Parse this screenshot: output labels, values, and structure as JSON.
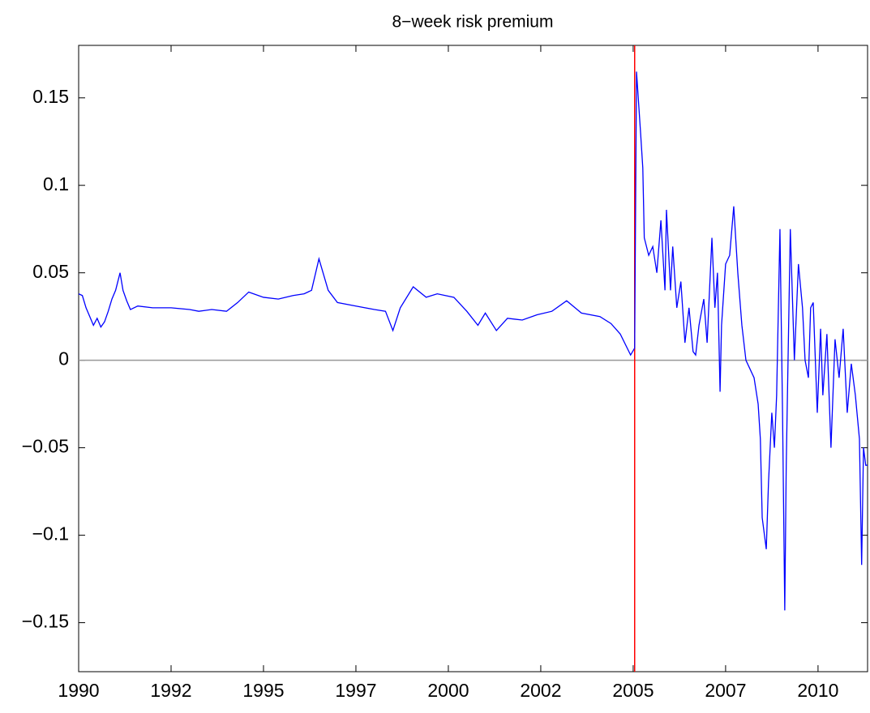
{
  "chart_data": {
    "type": "line",
    "title": "8−week risk premium",
    "x": [
      1990.0,
      1990.1,
      1990.2,
      1990.3,
      1990.4,
      1990.5,
      1990.6,
      1990.7,
      1990.8,
      1990.9,
      1991.0,
      1991.12,
      1991.2,
      1991.3,
      1991.4,
      1991.6,
      1992.0,
      1992.5,
      1993.0,
      1993.25,
      1993.6,
      1994.0,
      1994.3,
      1994.6,
      1995.0,
      1995.4,
      1995.8,
      1996.1,
      1996.3,
      1996.5,
      1996.75,
      1997.0,
      1997.5,
      1998.0,
      1998.3,
      1998.5,
      1998.7,
      1999.05,
      1999.4,
      1999.7,
      2000.15,
      2000.5,
      2000.8,
      2001.0,
      2001.3,
      2001.6,
      2002.0,
      2002.4,
      2002.8,
      2003.2,
      2003.6,
      2004.1,
      2004.4,
      2004.65,
      2004.93,
      2005.04,
      2005.09,
      2005.2,
      2005.26,
      2005.3,
      2005.42,
      2005.53,
      2005.64,
      2005.75,
      2005.86,
      2005.9,
      2006.01,
      2006.07,
      2006.18,
      2006.29,
      2006.4,
      2006.51,
      2006.62,
      2006.69,
      2006.78,
      2006.91,
      2007.0,
      2007.13,
      2007.21,
      2007.28,
      2007.35,
      2007.39,
      2007.5,
      2007.61,
      2007.72,
      2007.83,
      2007.94,
      2008.05,
      2008.16,
      2008.27,
      2008.38,
      2008.44,
      2008.49,
      2008.6,
      2008.66,
      2008.75,
      2008.82,
      2008.88,
      2008.97,
      2009.04,
      2009.1,
      2009.14,
      2009.25,
      2009.36,
      2009.47,
      2009.58,
      2009.65,
      2009.74,
      2009.8,
      2009.87,
      2009.98,
      2010.07,
      2010.13,
      2010.24,
      2010.35,
      2010.46,
      2010.57,
      2010.68,
      2010.79,
      2010.9,
      2011.01,
      2011.12,
      2011.18,
      2011.23,
      2011.29,
      2011.34
    ],
    "series": [
      {
        "name": "risk premium",
        "color": "#0000ff",
        "values": [
          0.038,
          0.037,
          0.03,
          0.025,
          0.02,
          0.024,
          0.019,
          0.022,
          0.028,
          0.035,
          0.04,
          0.05,
          0.04,
          0.034,
          0.029,
          0.031,
          0.03,
          0.03,
          0.029,
          0.028,
          0.029,
          0.028,
          0.033,
          0.039,
          0.036,
          0.035,
          0.037,
          0.038,
          0.04,
          0.058,
          0.04,
          0.033,
          0.031,
          0.029,
          0.028,
          0.017,
          0.03,
          0.042,
          0.036,
          0.038,
          0.036,
          0.028,
          0.02,
          0.027,
          0.017,
          0.024,
          0.023,
          0.026,
          0.028,
          0.034,
          0.027,
          0.025,
          0.021,
          0.015,
          0.003,
          0.007,
          0.165,
          0.13,
          0.11,
          0.07,
          0.06,
          0.065,
          0.05,
          0.08,
          0.04,
          0.086,
          0.04,
          0.065,
          0.03,
          0.045,
          0.01,
          0.03,
          0.005,
          0.003,
          0.02,
          0.035,
          0.01,
          0.07,
          0.03,
          0.05,
          -0.018,
          0.02,
          0.055,
          0.06,
          0.088,
          0.05,
          0.02,
          0.0,
          -0.005,
          -0.01,
          -0.025,
          -0.045,
          -0.09,
          -0.108,
          -0.07,
          -0.03,
          -0.05,
          -0.02,
          0.075,
          -0.03,
          -0.143,
          -0.06,
          0.075,
          0.0,
          0.055,
          0.03,
          0.0,
          -0.01,
          0.03,
          0.033,
          -0.03,
          0.018,
          -0.02,
          0.015,
          -0.05,
          0.012,
          -0.01,
          0.018,
          -0.03,
          -0.002,
          -0.02,
          -0.045,
          -0.117,
          -0.05,
          -0.06,
          -0.06
        ]
      }
    ],
    "xlim": [
      1990,
      2011.34
    ],
    "xticks": [
      1990,
      {
        "value": 1992.5,
        "label": "1992"
      },
      1995,
      {
        "value": 1997.5,
        "label": "1997"
      },
      2000,
      {
        "value": 2002.5,
        "label": "2002"
      },
      2005,
      {
        "value": 2007.5,
        "label": "2007"
      },
      2010
    ],
    "ylim": [
      -0.178,
      0.18
    ],
    "yticks": [
      {
        "value": -0.15,
        "label": "−0.15"
      },
      {
        "value": -0.1,
        "label": "−0.1"
      },
      {
        "value": -0.05,
        "label": "−0.05"
      },
      0,
      0.05,
      0.1,
      0.15
    ],
    "vline": {
      "x": 2005.04,
      "color": "#ff0000"
    },
    "hline": {
      "y": 0,
      "color": "#999999"
    }
  }
}
